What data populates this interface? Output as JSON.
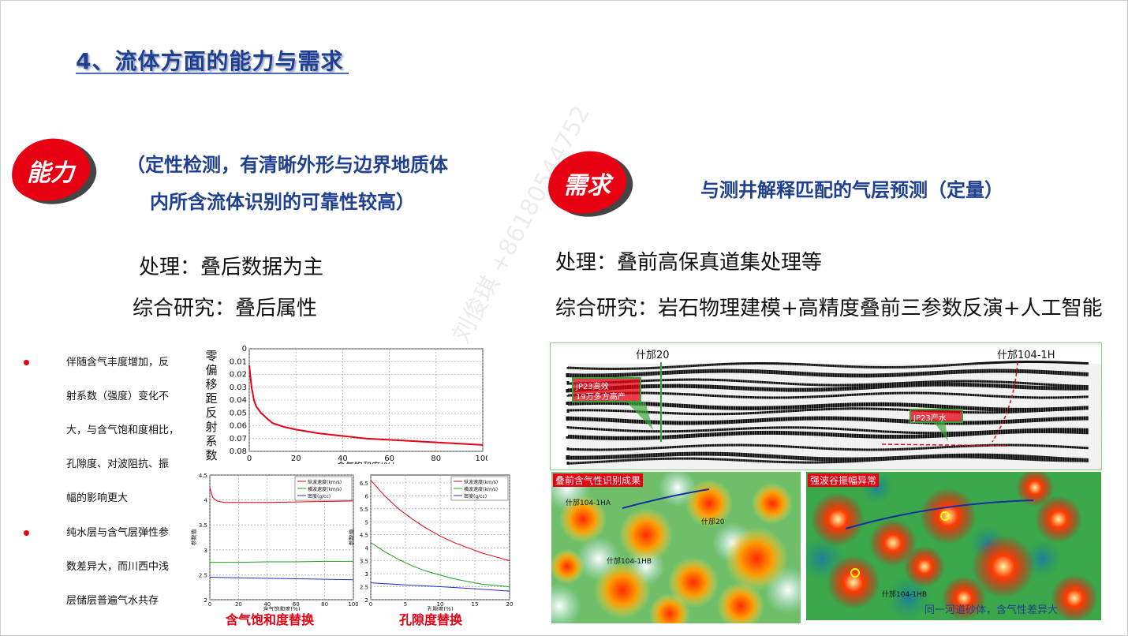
{
  "title": "4、流体方面的能力与需求",
  "left": {
    "badge": "能力",
    "heading_line1": "（定性检测，有清晰外形与边界地质体",
    "heading_line2": "内所含流体识别的可靠性较高）",
    "line1": "处理：叠后数据为主",
    "line2": "综合研究：叠后属性",
    "bullets": [
      {
        "lines": [
          "伴随含气丰度增加，反",
          "射系数（强度）变化不",
          "大，与含气饱和度相比，",
          "孔隙度、对波阻抗、振",
          "幅的影响更大"
        ]
      },
      {
        "lines": [
          "纯水层与含气层弹性参",
          "数差异大，而川西中浅",
          "层储层普遍气水共存"
        ]
      }
    ],
    "caption1": "含气饱和度替换",
    "caption2": "孔隙度替换"
  },
  "right": {
    "badge": "需求",
    "heading": "与测井解释匹配的气层预测（定量）",
    "line1": "处理：叠前高保真道集处理等",
    "line2": "综合研究：岩石物理建模+高精度叠前三参数反演+人工智能",
    "seismic": {
      "well1": "什邡20",
      "well2": "什邡104-1H",
      "callout1_line1": "JP23高效",
      "callout1_line2": "19万多方高产",
      "callout2": "JP23产水"
    },
    "map1": {
      "label": "叠前含气性识别成果",
      "wells": [
        "什邡104-1HA",
        "什邡20",
        "什邡104-1HB"
      ]
    },
    "map2": {
      "label": "强波谷振幅异常",
      "wells": [
        "什邡104-1HB"
      ],
      "note": "同一河道砂体，含气性差异大"
    }
  },
  "watermark": "刘俊琪 +8618054​4752",
  "chart_data": [
    {
      "type": "line",
      "xlabel": "含气饱和度(%)",
      "ylabel": "零偏移距反射系数",
      "x_ticks": [
        "0",
        "20",
        "40",
        "60",
        "80",
        "100"
      ],
      "y_ticks": [
        "0",
        "0.01",
        "0.02",
        "0.03",
        "0.04",
        "0.05",
        "0.06",
        "0.07",
        "0.08"
      ],
      "xlim": [
        0,
        100
      ],
      "ylim": [
        0,
        0.08
      ],
      "y_inverted": true,
      "grid": true,
      "series": [
        {
          "color": "#e60012",
          "x": [
            0,
            1,
            2,
            3,
            5,
            8,
            10,
            15,
            20,
            30,
            40,
            50,
            60,
            70,
            80,
            90,
            100
          ],
          "y": [
            0.013,
            0.03,
            0.04,
            0.045,
            0.05,
            0.055,
            0.058,
            0.061,
            0.063,
            0.066,
            0.068,
            0.07,
            0.071,
            0.072,
            0.073,
            0.074,
            0.075
          ]
        }
      ]
    },
    {
      "type": "line",
      "xlabel": "含气饱和度(%)",
      "ylabel": "参数值",
      "x_ticks": [
        "0",
        "20",
        "40",
        "60",
        "80",
        "100"
      ],
      "y_ticks": [
        "2",
        "2.5",
        "3",
        "3.5",
        "4",
        "4.5"
      ],
      "xlim": [
        0,
        100
      ],
      "ylim": [
        2,
        4.5
      ],
      "grid": true,
      "legend": [
        "纵波速度(km/s)",
        "横波速度(km/s)",
        "密度(g/cc)"
      ],
      "series": [
        {
          "name": "纵波速度(km/s)",
          "color": "#e60012",
          "x": [
            0,
            2,
            5,
            10,
            20,
            40,
            60,
            80,
            100
          ],
          "y": [
            4.25,
            4.05,
            3.98,
            3.95,
            3.95,
            3.95,
            3.96,
            3.97,
            3.98
          ]
        },
        {
          "name": "横波速度(km/s)",
          "color": "#1aa01a",
          "x": [
            0,
            20,
            40,
            60,
            80,
            100
          ],
          "y": [
            2.75,
            2.75,
            2.76,
            2.76,
            2.77,
            2.77
          ]
        },
        {
          "name": "密度(g/cc)",
          "color": "#2030c0",
          "x": [
            0,
            20,
            40,
            60,
            80,
            100
          ],
          "y": [
            2.45,
            2.44,
            2.43,
            2.42,
            2.41,
            2.4
          ]
        }
      ]
    },
    {
      "type": "line",
      "xlabel": "孔隙度(%)",
      "ylabel": "参数值",
      "x_ticks": [
        "0",
        "5",
        "10",
        "15",
        "20"
      ],
      "y_ticks": [
        "2",
        "2.5",
        "3",
        "3.5",
        "4",
        "4.5",
        "5",
        "5.5",
        "6",
        "6.5"
      ],
      "xlim": [
        0,
        20
      ],
      "ylim": [
        2,
        6.8
      ],
      "grid": true,
      "legend": [
        "纵波速度(km/s)",
        "横波速度(km/s)",
        "密度(g/cc)"
      ],
      "series": [
        {
          "name": "纵波速度(km/s)",
          "color": "#e60012",
          "x": [
            0,
            2,
            4,
            6,
            8,
            10,
            12,
            14,
            16,
            18,
            20
          ],
          "y": [
            6.6,
            6.0,
            5.5,
            5.1,
            4.75,
            4.45,
            4.2,
            4.0,
            3.8,
            3.65,
            3.5
          ]
        },
        {
          "name": "横波速度(km/s)",
          "color": "#1aa01a",
          "x": [
            0,
            2,
            4,
            6,
            8,
            10,
            12,
            14,
            16,
            18,
            20
          ],
          "y": [
            4.2,
            3.85,
            3.55,
            3.3,
            3.1,
            2.95,
            2.8,
            2.7,
            2.6,
            2.55,
            2.5
          ]
        },
        {
          "name": "密度(g/cc)",
          "color": "#2030c0",
          "x": [
            0,
            5,
            10,
            15,
            20
          ],
          "y": [
            2.65,
            2.57,
            2.5,
            2.42,
            2.33
          ]
        }
      ]
    }
  ]
}
